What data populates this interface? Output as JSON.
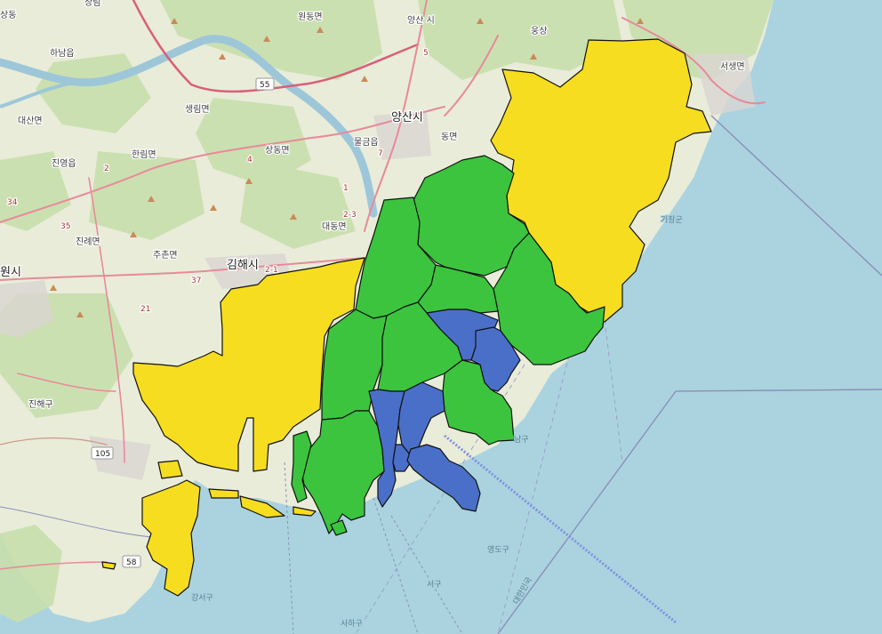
{
  "map": {
    "fill_colors": {
      "yellow": "#f6dd20",
      "green": "#3cc43e",
      "blue": "#4a6fc8"
    },
    "basemap_colors": {
      "land": "#e9ecd9",
      "forest": "#c8dfac",
      "water": "#aad3df",
      "river": "#9dc7d9",
      "road": "#e88a9a",
      "highway": "#d95f7a"
    },
    "place_labels": [
      {
        "text": "양산시",
        "size": "big"
      },
      {
        "text": "김해시",
        "size": "big"
      },
      {
        "text": "물금읍"
      },
      {
        "text": "동면"
      },
      {
        "text": "생림면"
      },
      {
        "text": "상동면"
      },
      {
        "text": "한림면"
      },
      {
        "text": "진영읍"
      },
      {
        "text": "대산면"
      },
      {
        "text": "하남읍"
      },
      {
        "text": "진례면"
      },
      {
        "text": "주촌면"
      },
      {
        "text": "대동면"
      },
      {
        "text": "원동면"
      },
      {
        "text": "웅상"
      },
      {
        "text": "서생면"
      },
      {
        "text": "상림"
      },
      {
        "text": "원시",
        "size": "big"
      },
      {
        "text": "진해구"
      },
      {
        "text": "양산 시"
      },
      {
        "text": "상동"
      }
    ],
    "water_labels": [
      {
        "text": "기장군"
      },
      {
        "text": "강서구"
      },
      {
        "text": "사하구"
      },
      {
        "text": "서구"
      },
      {
        "text": "영도구"
      },
      {
        "text": "남구"
      },
      {
        "text": "대한민국"
      }
    ],
    "route_shields": [
      "105",
      "58",
      "55"
    ],
    "road_numbers": [
      "35",
      "37",
      "34",
      "2",
      "4",
      "5",
      "1",
      "2-3",
      "2-1",
      "21",
      "7"
    ]
  }
}
